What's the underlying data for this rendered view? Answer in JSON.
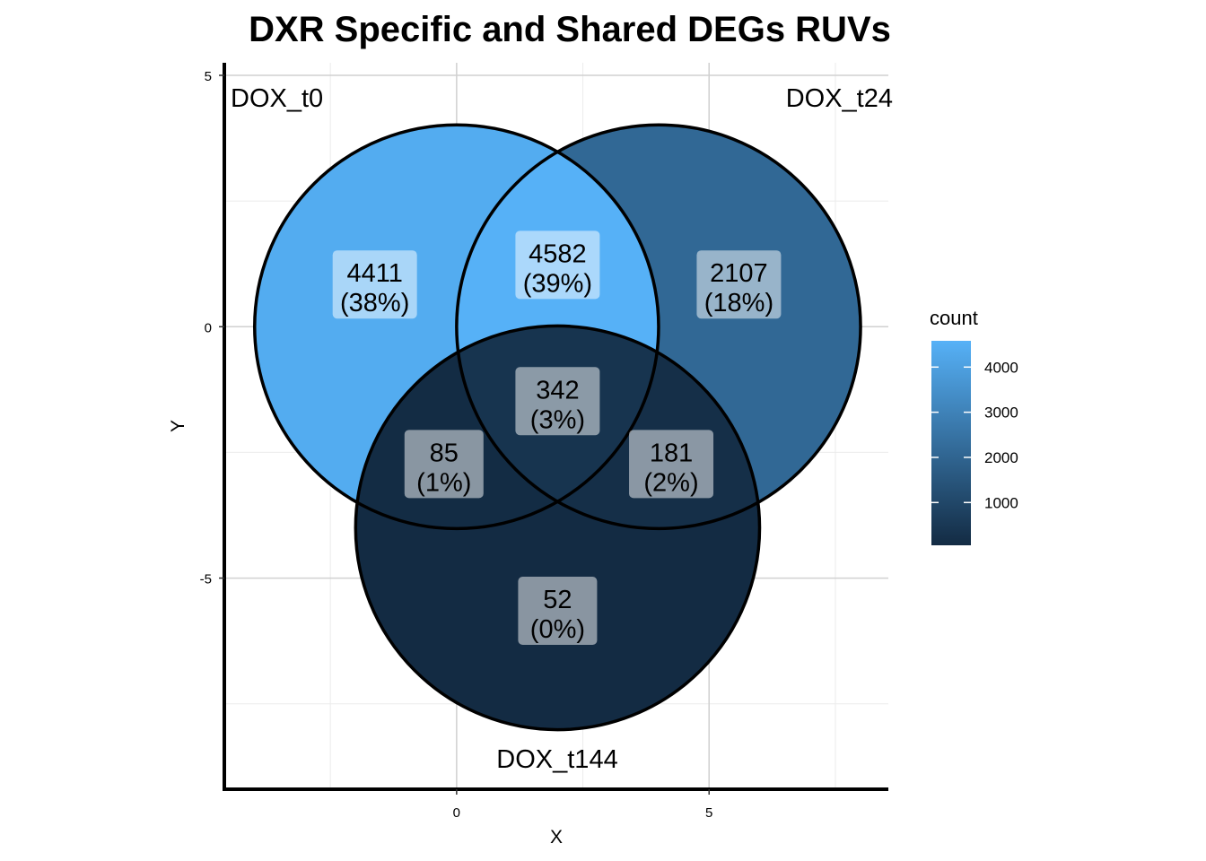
{
  "chart_data": {
    "type": "venn",
    "title": "DXR Specific and Shared DEGs RUVs",
    "xlabel": "X",
    "ylabel": "Y",
    "xlim": [
      -4.6,
      8.55
    ],
    "ylim": [
      -9.2,
      5.25
    ],
    "x_ticks": [
      "0",
      "5"
    ],
    "y_ticks": [
      "5",
      "0",
      "-5"
    ],
    "grid": true,
    "sets": [
      {
        "name": "DOX_t0",
        "center": [
          0,
          0
        ],
        "radius": 4
      },
      {
        "name": "DOX_t24",
        "center": [
          4,
          0
        ],
        "radius": 4
      },
      {
        "name": "DOX_t144",
        "center": [
          2,
          -4
        ],
        "radius": 4
      }
    ],
    "regions": [
      {
        "sets": [
          "DOX_t0"
        ],
        "count": 4411,
        "percent": "(38%)",
        "label_pos": [
          -1.62,
          0.84
        ]
      },
      {
        "sets": [
          "DOX_t24"
        ],
        "count": 2107,
        "percent": "(18%)",
        "label_pos": [
          5.59,
          0.84
        ]
      },
      {
        "sets": [
          "DOX_t144"
        ],
        "count": 52,
        "percent": "(0%)",
        "label_pos": [
          2,
          -5.65
        ]
      },
      {
        "sets": [
          "DOX_t0",
          "DOX_t24"
        ],
        "count": 4582,
        "percent": "(39%)",
        "label_pos": [
          2,
          1.23
        ]
      },
      {
        "sets": [
          "DOX_t0",
          "DOX_t144"
        ],
        "count": 85,
        "percent": "(1%)",
        "label_pos": [
          -0.25,
          -2.73
        ]
      },
      {
        "sets": [
          "DOX_t24",
          "DOX_t144"
        ],
        "count": 181,
        "percent": "(2%)",
        "label_pos": [
          4.25,
          -2.73
        ]
      },
      {
        "sets": [
          "DOX_t0",
          "DOX_t24",
          "DOX_t144"
        ],
        "count": 342,
        "percent": "(3%)",
        "label_pos": [
          2,
          -1.48
        ]
      }
    ],
    "legend": {
      "title": "count",
      "position": "right",
      "ticks": [
        "4000",
        "3000",
        "2000",
        "1000"
      ],
      "range": [
        52,
        4582
      ],
      "low_color": "#132B43",
      "high_color": "#56B1F7"
    }
  }
}
